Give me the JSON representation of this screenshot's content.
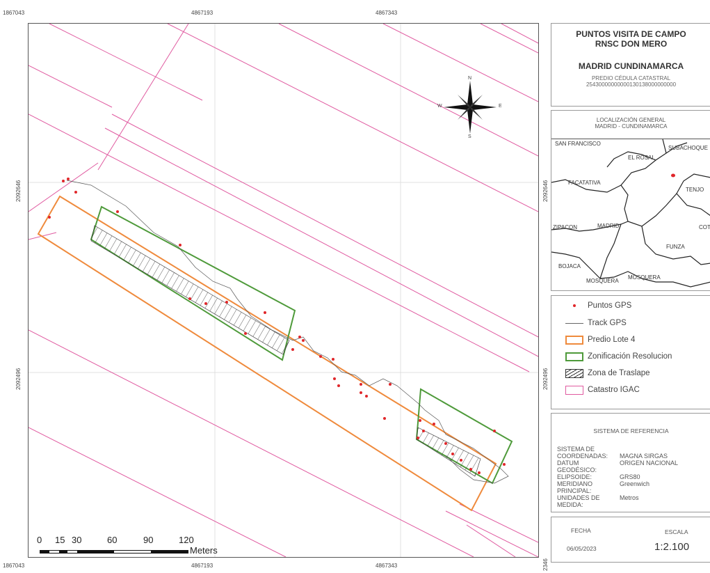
{
  "ticks": {
    "x_top": [
      "1867043",
      "4867193",
      "4867343"
    ],
    "x_bottom": [
      "1867043",
      "4867193",
      "4867343"
    ],
    "y_left": [
      "2092646",
      "2092496"
    ],
    "y_right": [
      "2092646",
      "2092496",
      "2346"
    ]
  },
  "title": {
    "line1": "PUNTOS VISITA DE CAMPO",
    "line2": "RNSC DON MERO",
    "location": "MADRID CUNDINAMARCA",
    "predio_label": "PREDIO CÉDULA CATASTRAL",
    "predio_code": "25430000000000130138000000000"
  },
  "general_location": {
    "title1": "LOCALIZACIÓN GENERAL",
    "title2": "MADRID - CUNDINAMARCA",
    "places": [
      "SAN FRANCISCO",
      "EL ROSAL",
      "SUBACHOQUE",
      "FACATATIVA",
      "TENJO",
      "ZIPACON",
      "MADRID",
      "COTA",
      "FUNZA",
      "BOJACA",
      "MOSQUERA",
      "MOSQUERA"
    ]
  },
  "compass": {
    "n": "N",
    "s": "S",
    "e": "E",
    "w": "W"
  },
  "legend": [
    {
      "label": "Puntos GPS",
      "symbol": "point",
      "color": "#e0262a"
    },
    {
      "label": "Track GPS",
      "symbol": "line",
      "color": "#666666"
    },
    {
      "label": "Predio Lote 4",
      "symbol": "box",
      "color": "#ef8a3c"
    },
    {
      "label": "Zonificación Resolucion",
      "symbol": "box",
      "color": "#4e9a3a"
    },
    {
      "label": "Zona de Traslape",
      "symbol": "hatch",
      "color": "#333333"
    },
    {
      "label": "Catastro IGAC",
      "symbol": "box",
      "color": "#e05aa0"
    }
  ],
  "reference": {
    "title": "SISTEMA DE REFERENCIA",
    "rows": [
      {
        "key": "SISTEMA DE COORDENADAS:",
        "value": "MAGNA SIRGAS"
      },
      {
        "key": "DATUM GEODÉSICO:",
        "value": "ORIGEN NACIONAL"
      },
      {
        "key": "ELIPSOIDE:",
        "value": "GRS80"
      },
      {
        "key": "MERIDIANO PRINCIPAL:",
        "value": "Greenwich"
      },
      {
        "key": "UNIDADES DE MEDIDA:",
        "value": "Metros"
      }
    ]
  },
  "footer": {
    "date_label": "FECHA",
    "date": "06/05/2023",
    "scale_label": "ESCALA",
    "scale": "1:2.100"
  },
  "scalebar": {
    "labels": [
      "0",
      "15",
      "30",
      "60",
      "90",
      "120"
    ],
    "unit": "Meters"
  }
}
